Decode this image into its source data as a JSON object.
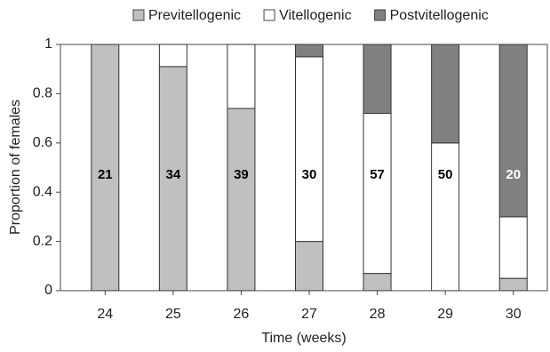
{
  "chart_data": {
    "type": "stacked_bar",
    "categories": [
      "24",
      "25",
      "26",
      "27",
      "28",
      "29",
      "30"
    ],
    "series": [
      {
        "name": "Previtellogenic",
        "color": "#c0c0c0",
        "values": [
          1,
          0.91,
          0.74,
          0.2,
          0.07,
          0,
          0.05
        ]
      },
      {
        "name": "Vitellogenic",
        "color": "#ffffff",
        "values": [
          0,
          0.09,
          0.26,
          0.75,
          0.65,
          0.6,
          0.25
        ]
      },
      {
        "name": "Postvitellogenic",
        "color": "#808080",
        "values": [
          0,
          0,
          0,
          0.05,
          0.28,
          0.4,
          0.7
        ]
      }
    ],
    "sample_sizes": [
      21,
      34,
      39,
      30,
      57,
      50,
      20
    ],
    "sample_size_colors": [
      "#000000",
      "#000000",
      "#000000",
      "#000000",
      "#000000",
      "#000000",
      "#ffffff"
    ],
    "ylim": [
      0,
      1
    ],
    "yticks": [
      0,
      0.2,
      0.4,
      0.6,
      0.8,
      1
    ],
    "xlabel": "Time (weeks)",
    "ylabel": "Proportion of females",
    "legend": "top"
  }
}
